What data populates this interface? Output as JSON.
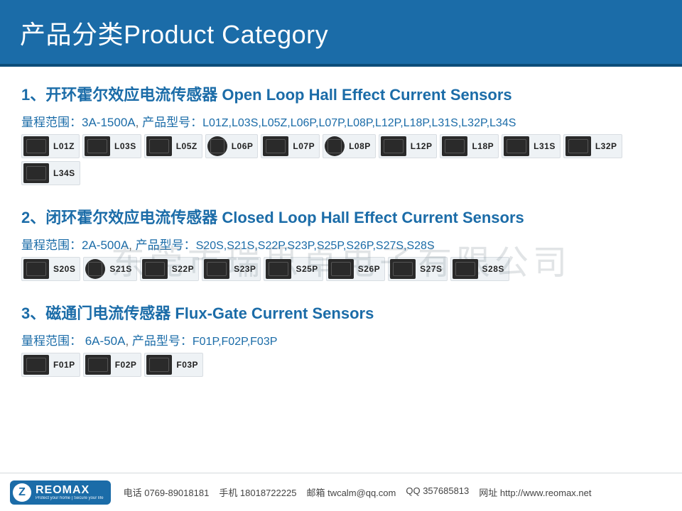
{
  "header": {
    "title": "产品分类Product Category"
  },
  "colors": {
    "brand": "#1b6ca8",
    "text": "#222",
    "muted": "#666",
    "thumb_bg": "#eef2f5",
    "thumb_border": "#d8dde2",
    "pic_dark": "#2a2a2a",
    "watermark": "rgba(120,130,140,0.22)"
  },
  "watermark_text": "东莞市瑞思卓电子有限公司",
  "sections": [
    {
      "num": "1、",
      "title": "开环霍尔效应电流传感器 Open Loop Hall Effect Current Sensors",
      "range_label": "量程范围：",
      "range_value": "3A-1500A",
      "model_label": "产品型号：",
      "models": "L01Z,L03S,L05Z,L06P,L07P,L08P,L12P,L18P,L31S,L32P,L34S",
      "thumbs": [
        {
          "label": "L01Z",
          "shape": "rect"
        },
        {
          "label": "L03S",
          "shape": "rect"
        },
        {
          "label": "L05Z",
          "shape": "rect"
        },
        {
          "label": "L06P",
          "shape": "round"
        },
        {
          "label": "L07P",
          "shape": "rect"
        },
        {
          "label": "L08P",
          "shape": "round"
        },
        {
          "label": "L12P",
          "shape": "rect"
        },
        {
          "label": "L18P",
          "shape": "rect"
        },
        {
          "label": "L31S",
          "shape": "rect"
        },
        {
          "label": "L32P",
          "shape": "rect"
        },
        {
          "label": "L34S",
          "shape": "rect"
        }
      ]
    },
    {
      "num": "2、",
      "title": "闭环霍尔效应电流传感器 Closed Loop Hall Effect Current Sensors",
      "range_label": "量程范围：",
      "range_value": "2A-500A",
      "model_label": "产品型号：",
      "models": "S20S,S21S,S22P,S23P,S25P,S26P,S27S,S28S",
      "thumbs": [
        {
          "label": "S20S",
          "shape": "rect"
        },
        {
          "label": "S21S",
          "shape": "round"
        },
        {
          "label": "S22P",
          "shape": "rect"
        },
        {
          "label": "S23P",
          "shape": "rect"
        },
        {
          "label": "S25P",
          "shape": "rect"
        },
        {
          "label": "S26P",
          "shape": "rect"
        },
        {
          "label": "S27S",
          "shape": "rect"
        },
        {
          "label": "S28S",
          "shape": "rect"
        }
      ]
    },
    {
      "num": "3、",
      "title": "磁通门电流传感器 Flux-Gate Current Sensors",
      "range_label": "量程范围：",
      "range_value": " 6A-50A",
      "model_label": "产品型号：",
      "models": "F01P,F02P,F03P",
      "thumbs": [
        {
          "label": "F01P",
          "shape": "rect"
        },
        {
          "label": "F02P",
          "shape": "rect"
        },
        {
          "label": "F03P",
          "shape": "rect"
        }
      ]
    }
  ],
  "footer": {
    "logo_text": "REOMAX",
    "logo_sub": "Protect your home | Secure your life",
    "items": [
      {
        "label": "电话",
        "value": "0769-89018181"
      },
      {
        "label": "手机",
        "value": "18018722225"
      },
      {
        "label": "邮箱",
        "value": "twcalm@qq.com"
      },
      {
        "label": "QQ",
        "value": "357685813"
      },
      {
        "label": "网址",
        "value": "http://www.reomax.net"
      }
    ]
  }
}
